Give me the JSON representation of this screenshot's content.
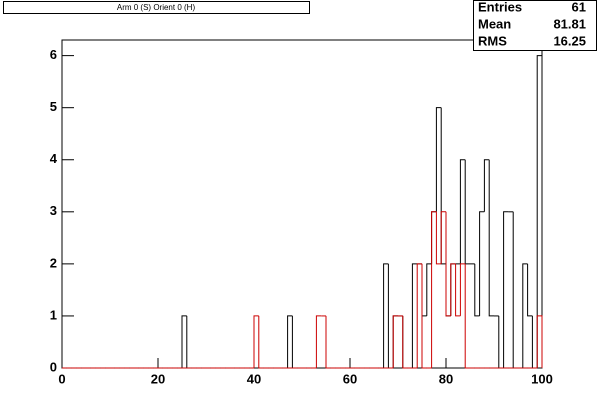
{
  "chart_data": {
    "type": "histogram",
    "title": "Arm 0 (S) Orient 0 (H)",
    "stats": [
      {
        "label": "Entries",
        "value": 61
      },
      {
        "label": "Mean",
        "value": 81.81
      },
      {
        "label": "RMS",
        "value": 16.25
      }
    ],
    "bins": [
      0,
      1,
      2,
      3,
      4,
      5,
      6,
      7,
      8,
      9,
      10,
      11,
      12,
      13,
      14,
      15,
      16,
      17,
      18,
      19,
      20,
      21,
      22,
      23,
      24,
      25,
      26,
      27,
      28,
      29,
      30,
      31,
      32,
      33,
      34,
      35,
      36,
      37,
      38,
      39,
      40,
      41,
      42,
      43,
      44,
      45,
      46,
      47,
      48,
      49,
      50,
      51,
      52,
      53,
      54,
      55,
      56,
      57,
      58,
      59,
      60,
      61,
      62,
      63,
      64,
      65,
      66,
      67,
      68,
      69,
      70,
      71,
      72,
      73,
      74,
      75,
      76,
      77,
      78,
      79,
      80,
      81,
      82,
      83,
      84,
      85,
      86,
      87,
      88,
      89,
      90,
      91,
      92,
      93,
      94,
      95,
      96,
      97,
      98,
      99,
      100
    ],
    "series": [
      {
        "color": "#000000",
        "values": [
          0,
          0,
          0,
          0,
          0,
          0,
          0,
          0,
          0,
          0,
          0,
          0,
          0,
          0,
          0,
          0,
          0,
          0,
          0,
          0,
          0,
          0,
          0,
          0,
          0,
          1,
          0,
          0,
          0,
          0,
          0,
          0,
          0,
          0,
          0,
          0,
          0,
          0,
          0,
          0,
          0,
          0,
          0,
          0,
          0,
          0,
          0,
          1,
          0,
          0,
          0,
          0,
          0,
          0,
          0,
          0,
          0,
          0,
          0,
          0,
          0,
          0,
          0,
          0,
          0,
          0,
          0,
          2,
          0,
          1,
          1,
          0,
          0,
          2,
          2,
          1,
          2,
          3,
          5,
          2,
          1,
          2,
          2,
          4,
          2,
          2,
          1,
          3,
          4,
          1,
          1,
          0,
          3,
          3,
          0,
          0,
          2,
          1,
          0,
          6
        ]
      },
      {
        "color": "#cc0000",
        "values": [
          0,
          0,
          0,
          0,
          0,
          0,
          0,
          0,
          0,
          0,
          0,
          0,
          0,
          0,
          0,
          0,
          0,
          0,
          0,
          0,
          0,
          0,
          0,
          0,
          0,
          0,
          0,
          0,
          0,
          0,
          0,
          0,
          0,
          0,
          0,
          0,
          0,
          0,
          0,
          0,
          1,
          0,
          0,
          0,
          0,
          0,
          0,
          0,
          0,
          0,
          0,
          0,
          0,
          1,
          1,
          0,
          0,
          0,
          0,
          0,
          0,
          0,
          0,
          0,
          0,
          0,
          0,
          0,
          0,
          1,
          1,
          0,
          0,
          0,
          2,
          0,
          0,
          3,
          2,
          3,
          1,
          2,
          1,
          2,
          0,
          0,
          0,
          0,
          0,
          0,
          0,
          0,
          0,
          0,
          0,
          0,
          0,
          0,
          0,
          1
        ]
      }
    ],
    "xlim": [
      0,
      100
    ],
    "xticks": [
      0,
      20,
      40,
      60,
      80,
      100
    ],
    "ylim": [
      0,
      6.3
    ],
    "yticks": [
      0,
      1,
      2,
      3,
      4,
      5,
      6
    ]
  }
}
